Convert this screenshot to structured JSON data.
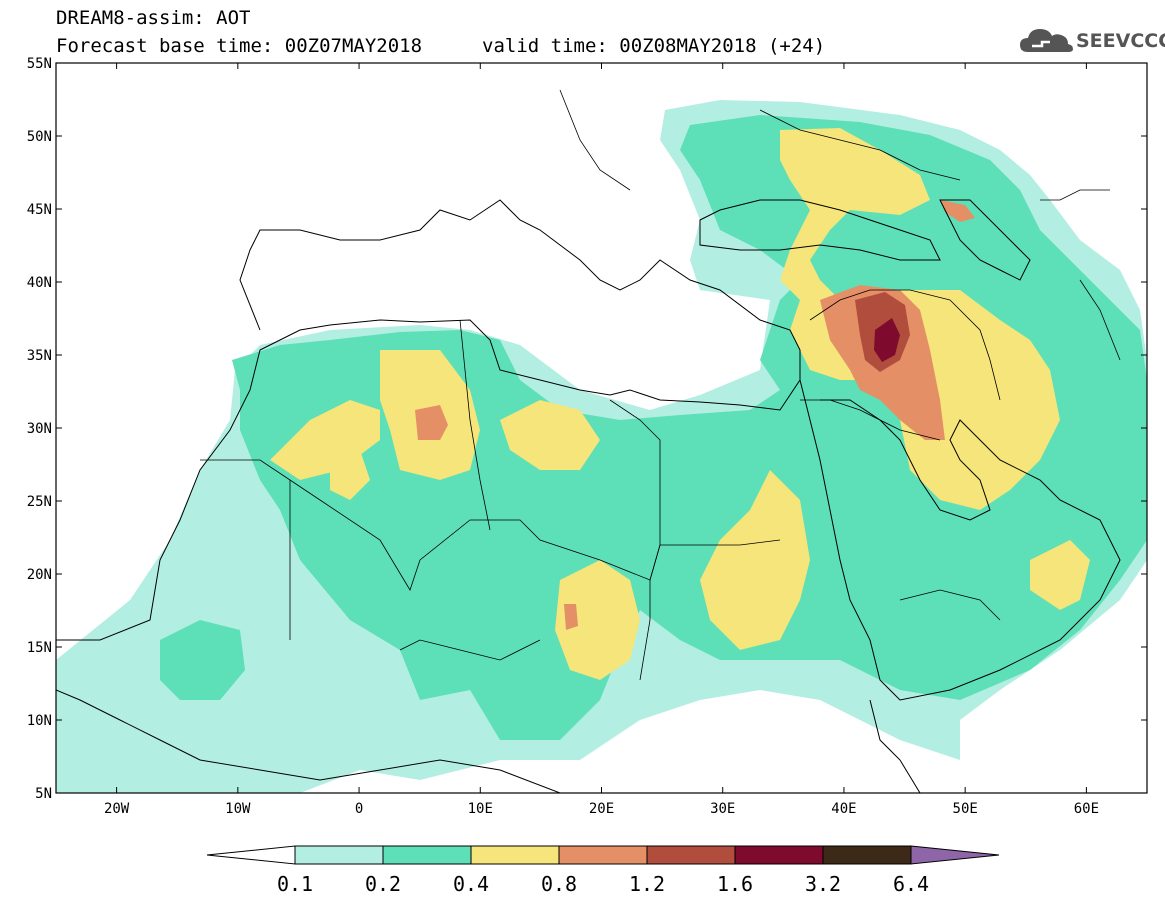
{
  "title": {
    "line1": "DREAM8-assim: AOT",
    "line2": "Forecast base time: 00Z07MAY2018",
    "valid": "valid time: 00Z08MAY2018 (+24)"
  },
  "logo": {
    "text": "SEEVCCC",
    "icon": "cloud-icon"
  },
  "axes": {
    "lat_labels": [
      "55N",
      "50N",
      "45N",
      "40N",
      "35N",
      "30N",
      "25N",
      "20N",
      "15N",
      "10N",
      "5N"
    ],
    "lon_labels": [
      "20W",
      "10W",
      "0",
      "10E",
      "20E",
      "30E",
      "40E",
      "50E",
      "60E"
    ],
    "lat_range": [
      5,
      55
    ],
    "lon_range": [
      -25,
      65
    ]
  },
  "colorbar": {
    "labels": [
      "0.1",
      "0.2",
      "0.4",
      "0.8",
      "1.2",
      "1.6",
      "3.2",
      "6.4"
    ],
    "colors": {
      "lt01": "#ffffff",
      "b01_02": "#b3eee3",
      "b02_04": "#5ddfb8",
      "b04_08": "#f5e57a",
      "b08_12": "#e58f66",
      "b12_16": "#b14d3d",
      "b16_32": "#7e0a2e",
      "b32_64": "#3d2917",
      "gt64": "#8e66a8"
    }
  }
}
